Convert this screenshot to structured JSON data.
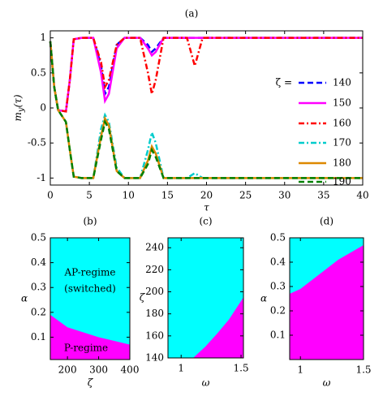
{
  "chart_data": [
    {
      "type": "line",
      "title": "(a)",
      "xlabel": "τ",
      "ylabel": {
        "base": "m",
        "sub": "y",
        "rest": "(τ)"
      },
      "legend_title": "ζ =",
      "x": [
        0,
        0.5,
        1,
        2,
        2.5,
        3,
        4,
        5.5,
        6.5,
        7,
        7.5,
        8.5,
        9.5,
        11.5,
        12.5,
        13,
        13.5,
        14.5,
        17.5,
        18.5,
        19.5,
        40
      ],
      "series": [
        {
          "name": "140",
          "color": "#0000ff",
          "style": "dashed",
          "values": [
            0.95,
            0.3,
            -0.03,
            -0.05,
            0.4,
            0.98,
            1,
            1,
            0.6,
            0.2,
            0.3,
            0.9,
            1,
            1,
            0.9,
            0.8,
            0.85,
            1,
            1,
            1,
            1,
            1
          ]
        },
        {
          "name": "150",
          "color": "#ff00ff",
          "style": "solid",
          "values": [
            0.95,
            0.3,
            -0.03,
            -0.05,
            0.4,
            0.98,
            1,
            1,
            0.5,
            0.1,
            0.2,
            0.85,
            1,
            1,
            0.85,
            0.75,
            0.8,
            1,
            1,
            1,
            1,
            1
          ]
        },
        {
          "name": "160",
          "color": "#ff0000",
          "style": "dashdot",
          "values": [
            0.95,
            0.3,
            -0.03,
            -0.05,
            0.4,
            0.98,
            1,
            1,
            0.65,
            0.3,
            0.4,
            0.9,
            1,
            1,
            0.5,
            0.2,
            0.4,
            1,
            1,
            0.6,
            1,
            1
          ]
        },
        {
          "name": "170",
          "color": "#00cccc",
          "style": "dashdot",
          "values": [
            0.95,
            0.3,
            -0.03,
            -0.2,
            -0.6,
            -0.98,
            -1,
            -1,
            -0.3,
            -0.1,
            -0.2,
            -0.85,
            -1,
            -1,
            -0.6,
            -0.35,
            -0.5,
            -1,
            -1,
            -0.93,
            -1,
            -1
          ]
        },
        {
          "name": "180",
          "color": "#dd8800",
          "style": "solid",
          "values": [
            0.95,
            0.3,
            -0.03,
            -0.2,
            -0.6,
            -0.98,
            -1,
            -1,
            -0.4,
            -0.15,
            -0.25,
            -0.9,
            -1,
            -1,
            -0.75,
            -0.55,
            -0.65,
            -1,
            -1,
            -1,
            -1,
            -1
          ]
        },
        {
          "name": "190",
          "color": "#008000",
          "style": "dashed",
          "values": [
            0.95,
            0.3,
            -0.03,
            -0.2,
            -0.6,
            -0.98,
            -1,
            -1,
            -0.45,
            -0.2,
            -0.3,
            -0.9,
            -1,
            -1,
            -0.8,
            -0.6,
            -0.7,
            -1,
            -1,
            -1,
            -1,
            -1
          ]
        }
      ],
      "xlim": [
        0,
        40
      ],
      "xticks": [
        0,
        5,
        10,
        15,
        20,
        25,
        30,
        35,
        40
      ],
      "ylim": [
        -1.1,
        1.1
      ],
      "yticks": [
        -1,
        -0.5,
        0,
        0.5,
        1
      ]
    },
    {
      "type": "phase",
      "title": "(b)",
      "xlabel": "ζ",
      "ylabel": "α",
      "x": [
        145,
        200,
        250,
        300,
        350,
        400
      ],
      "values": [
        0.19,
        0.14,
        0.12,
        0.1,
        0.085,
        0.07
      ],
      "upper_color": "#00ffff",
      "lower_color": "#ff00ff",
      "annotations": [
        "AP-regime",
        "(switched)",
        "P-regime"
      ],
      "xlim": [
        145,
        400
      ],
      "xticks": [
        200,
        300,
        400
      ],
      "ylim": [
        0.01,
        0.5
      ],
      "yticks": [
        0.1,
        0.2,
        0.3,
        0.4,
        0.5
      ]
    },
    {
      "type": "phase",
      "title": "(c)",
      "xlabel": "ω",
      "ylabel": "ζ",
      "x": [
        0.89,
        1.1,
        1.2,
        1.3,
        1.4,
        1.52
      ],
      "values": [
        140,
        140,
        150,
        162,
        175,
        195
      ],
      "upper_color": "#00ffff",
      "lower_color": "#ff00ff",
      "xlim": [
        0.89,
        1.52
      ],
      "xticks": [
        1,
        1.5
      ],
      "ylim": [
        140,
        249
      ],
      "yticks": [
        140,
        160,
        180,
        200,
        220,
        240
      ]
    },
    {
      "type": "phase",
      "title": "(d)",
      "xlabel": "ω",
      "ylabel": "α",
      "x": [
        0.915,
        1,
        1.1,
        1.2,
        1.3,
        1.4,
        1.5
      ],
      "values": [
        0.27,
        0.29,
        0.33,
        0.37,
        0.41,
        0.44,
        0.47
      ],
      "upper_color": "#00ffff",
      "lower_color": "#ff00ff",
      "xlim": [
        0.915,
        1.5
      ],
      "xticks": [
        1,
        1.5
      ],
      "ylim": [
        0,
        0.5
      ],
      "yticks": [
        0.1,
        0.2,
        0.3,
        0.4,
        0.5
      ]
    }
  ]
}
